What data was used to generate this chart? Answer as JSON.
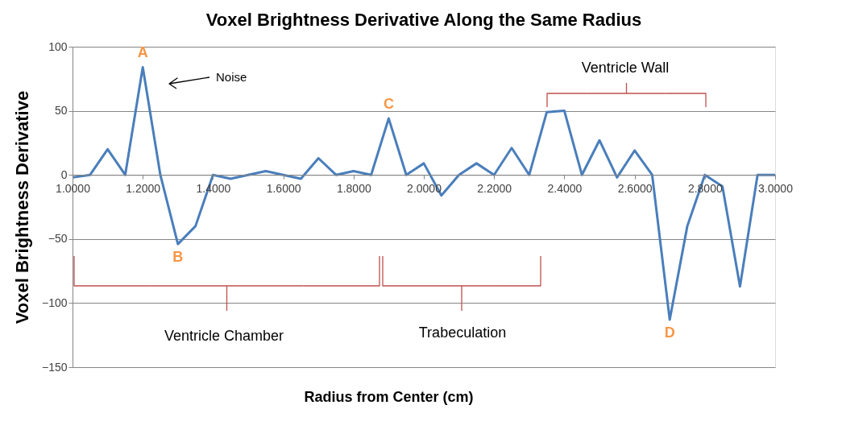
{
  "chart_data": {
    "type": "line",
    "title": "Voxel Brightness Derivative Along the Same Radius",
    "xlabel": "Radius from Center (cm)",
    "ylabel": "Voxel Brightness Derivative",
    "x": [
      1.0,
      1.05,
      1.1,
      1.15,
      1.2,
      1.25,
      1.3,
      1.35,
      1.4,
      1.45,
      1.5,
      1.55,
      1.6,
      1.65,
      1.7,
      1.75,
      1.8,
      1.85,
      1.9,
      1.95,
      2.0,
      2.05,
      2.1,
      2.15,
      2.2,
      2.25,
      2.3,
      2.35,
      2.4,
      2.45,
      2.5,
      2.55,
      2.6,
      2.65,
      2.7,
      2.75,
      2.8,
      2.85,
      2.9,
      2.95,
      3.0
    ],
    "series": [
      {
        "color": "#4a7ebb",
        "values": [
          -2,
          0,
          20,
          0,
          84,
          0,
          -54,
          -40,
          0,
          -3,
          0,
          3,
          0,
          -3,
          13,
          0,
          3,
          0,
          44,
          0,
          9,
          -16,
          0,
          9,
          0,
          21,
          0,
          49,
          50,
          0,
          27,
          -2,
          19,
          0,
          -113,
          -40,
          0,
          -9,
          -87,
          0,
          0
        ]
      }
    ],
    "xlim": [
      1.0,
      3.0
    ],
    "xticks": [
      {
        "value": 1.0,
        "label": "1.0000"
      },
      {
        "value": 1.2,
        "label": "1.2000"
      },
      {
        "value": 1.4,
        "label": "1.4000"
      },
      {
        "value": 1.6,
        "label": "1.6000"
      },
      {
        "value": 1.8,
        "label": "1.8000"
      },
      {
        "value": 2.0,
        "label": "2.0000"
      },
      {
        "value": 2.2,
        "label": "2.2000"
      },
      {
        "value": 2.4,
        "label": "2.4000"
      },
      {
        "value": 2.6,
        "label": "2.6000"
      },
      {
        "value": 2.8,
        "label": "2.8000"
      },
      {
        "value": 3.0,
        "label": "3.0000"
      }
    ],
    "ylim": [
      -150,
      100
    ],
    "yticks": [
      -150,
      -100,
      -50,
      0,
      50,
      100
    ],
    "grid": "y",
    "marker": "none",
    "line_style": "solid",
    "annotations": [
      {
        "text": "A",
        "x": 1.2,
        "y": 84
      },
      "Noise",
      "Ventricle Chamber",
      "Trabeculation",
      "Ventricle Wall",
      {
        "text": "B",
        "x": 1.3,
        "y": -54
      },
      {
        "text": "C",
        "x": 1.9,
        "y": 44
      },
      {
        "text": "D",
        "x": 2.7,
        "y": -113
      }
    ]
  }
}
